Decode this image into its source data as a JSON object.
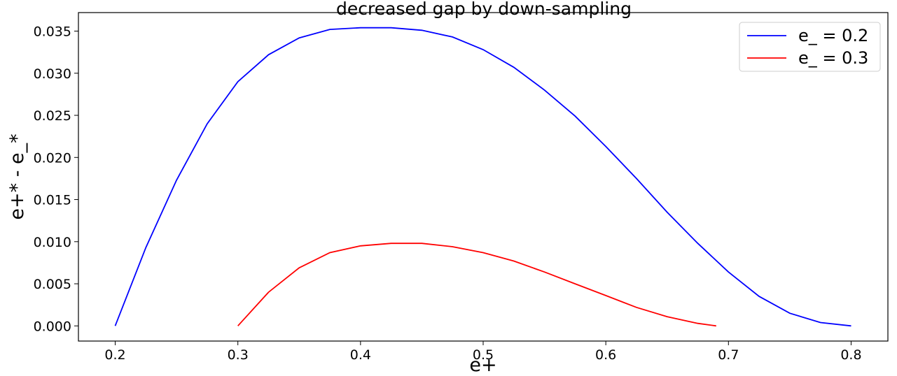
{
  "chart_data": {
    "type": "line",
    "title": "decreased gap by down-sampling",
    "xlabel": "e+",
    "ylabel": "e+* - e_*",
    "xlim": [
      0.17,
      0.83
    ],
    "ylim": [
      -0.0018,
      0.0372
    ],
    "xticks": [
      0.2,
      0.3,
      0.4,
      0.5,
      0.6,
      0.7,
      0.8
    ],
    "xtick_labels": [
      "0.2",
      "0.3",
      "0.4",
      "0.5",
      "0.6",
      "0.7",
      "0.8"
    ],
    "yticks": [
      0.0,
      0.005,
      0.01,
      0.015,
      0.02,
      0.025,
      0.03,
      0.035
    ],
    "ytick_labels": [
      "0.000",
      "0.005",
      "0.010",
      "0.015",
      "0.020",
      "0.025",
      "0.030",
      "0.035"
    ],
    "grid": false,
    "legend_position": "top-right",
    "series": [
      {
        "name": "e_ = 0.2",
        "color": "#0000ff",
        "x": [
          0.2,
          0.225,
          0.25,
          0.275,
          0.3,
          0.325,
          0.35,
          0.375,
          0.4,
          0.425,
          0.45,
          0.475,
          0.5,
          0.525,
          0.55,
          0.575,
          0.6,
          0.625,
          0.65,
          0.675,
          0.7,
          0.725,
          0.75,
          0.775,
          0.8
        ],
        "y": [
          0.0,
          0.0093,
          0.0173,
          0.024,
          0.029,
          0.0322,
          0.0342,
          0.0352,
          0.0354,
          0.0354,
          0.0351,
          0.0343,
          0.0328,
          0.0307,
          0.028,
          0.0249,
          0.0213,
          0.0175,
          0.0135,
          0.0098,
          0.0064,
          0.0035,
          0.0015,
          0.0004,
          0.0
        ]
      },
      {
        "name": "e_ = 0.3",
        "color": "#ff0000",
        "x": [
          0.3,
          0.325,
          0.35,
          0.375,
          0.4,
          0.425,
          0.45,
          0.475,
          0.5,
          0.525,
          0.55,
          0.575,
          0.6,
          0.625,
          0.65,
          0.675,
          0.69
        ],
        "y": [
          0.0,
          0.004,
          0.0069,
          0.0087,
          0.0095,
          0.0098,
          0.0098,
          0.0094,
          0.0087,
          0.0077,
          0.0064,
          0.005,
          0.0036,
          0.0022,
          0.0011,
          0.0003,
          0.0
        ]
      }
    ]
  }
}
